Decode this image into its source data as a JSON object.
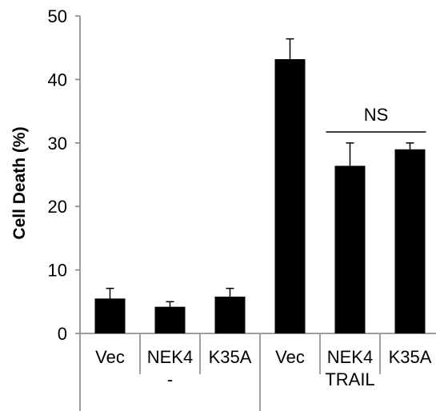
{
  "chart_data": {
    "type": "bar",
    "ylabel": "Cell Death (%)",
    "ylim": [
      0,
      50
    ],
    "yticks": [
      0,
      10,
      20,
      30,
      40,
      50
    ],
    "categories": [
      "Vec",
      "NEK4",
      "K35A",
      "Vec",
      "NEK4",
      "K35A"
    ],
    "values": [
      5.5,
      4.2,
      5.8,
      43.2,
      26.4,
      29.0
    ],
    "errors": [
      1.6,
      0.8,
      1.3,
      3.2,
      3.6,
      1.0
    ],
    "bar_color": "#000000",
    "groups": [
      {
        "label": "-",
        "start": 0,
        "end": 2
      },
      {
        "label": "TRAIL",
        "start": 3,
        "end": 5
      }
    ],
    "annotations": [
      {
        "text": "NS",
        "from": 4,
        "to": 5,
        "y": 33
      }
    ]
  }
}
